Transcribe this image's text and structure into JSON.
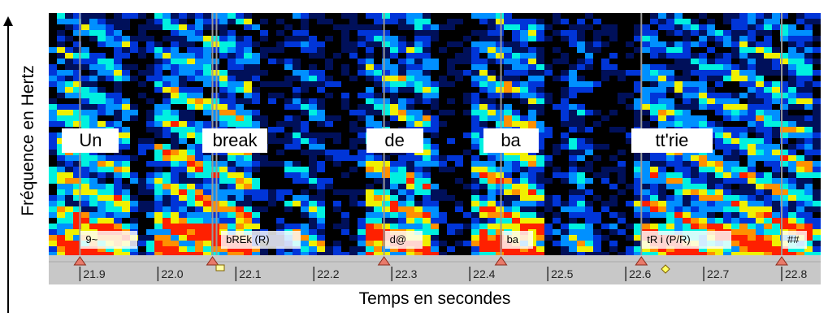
{
  "axes": {
    "ylabel": "Fréquence en Hertz",
    "xlabel": "Temps en secondes"
  },
  "chart_data": {
    "type": "heatmap",
    "title": "",
    "xlabel": "Temps en secondes",
    "ylabel": "Fréquence en Hertz",
    "xlim": [
      21.86,
      22.85
    ],
    "x_ticks": [
      "21.9",
      "22.0",
      "22.1",
      "22.2",
      "22.3",
      "22.4",
      "22.5",
      "22.6",
      "22.7",
      "22.8"
    ],
    "x_tick_values": [
      21.9,
      22.0,
      22.1,
      22.2,
      22.3,
      22.4,
      22.5,
      22.6,
      22.7,
      22.8
    ],
    "boundaries": [
      21.9,
      22.07,
      22.29,
      22.44,
      22.62,
      22.8
    ],
    "colormap": [
      "#000000",
      "#00105a",
      "#0035d8",
      "#0090ff",
      "#00f0e0",
      "#f0f000",
      "#ff9000",
      "#ff2000"
    ],
    "words": [
      {
        "text": "Un",
        "t": 21.9
      },
      {
        "text": "break",
        "t": 22.08
      },
      {
        "text": "de",
        "t": 22.29
      },
      {
        "text": "ba",
        "t": 22.44
      },
      {
        "text": "tt'rie",
        "t": 22.63
      }
    ],
    "phonetics": [
      {
        "text": "9~",
        "t": 21.9
      },
      {
        "text": "bREk (R)",
        "t": 22.08
      },
      {
        "text": "d@",
        "t": 22.29
      },
      {
        "text": "ba",
        "t": 22.44
      },
      {
        "text": "tR i (P/R)",
        "t": 22.62
      },
      {
        "text": "##",
        "t": 22.8
      }
    ]
  }
}
